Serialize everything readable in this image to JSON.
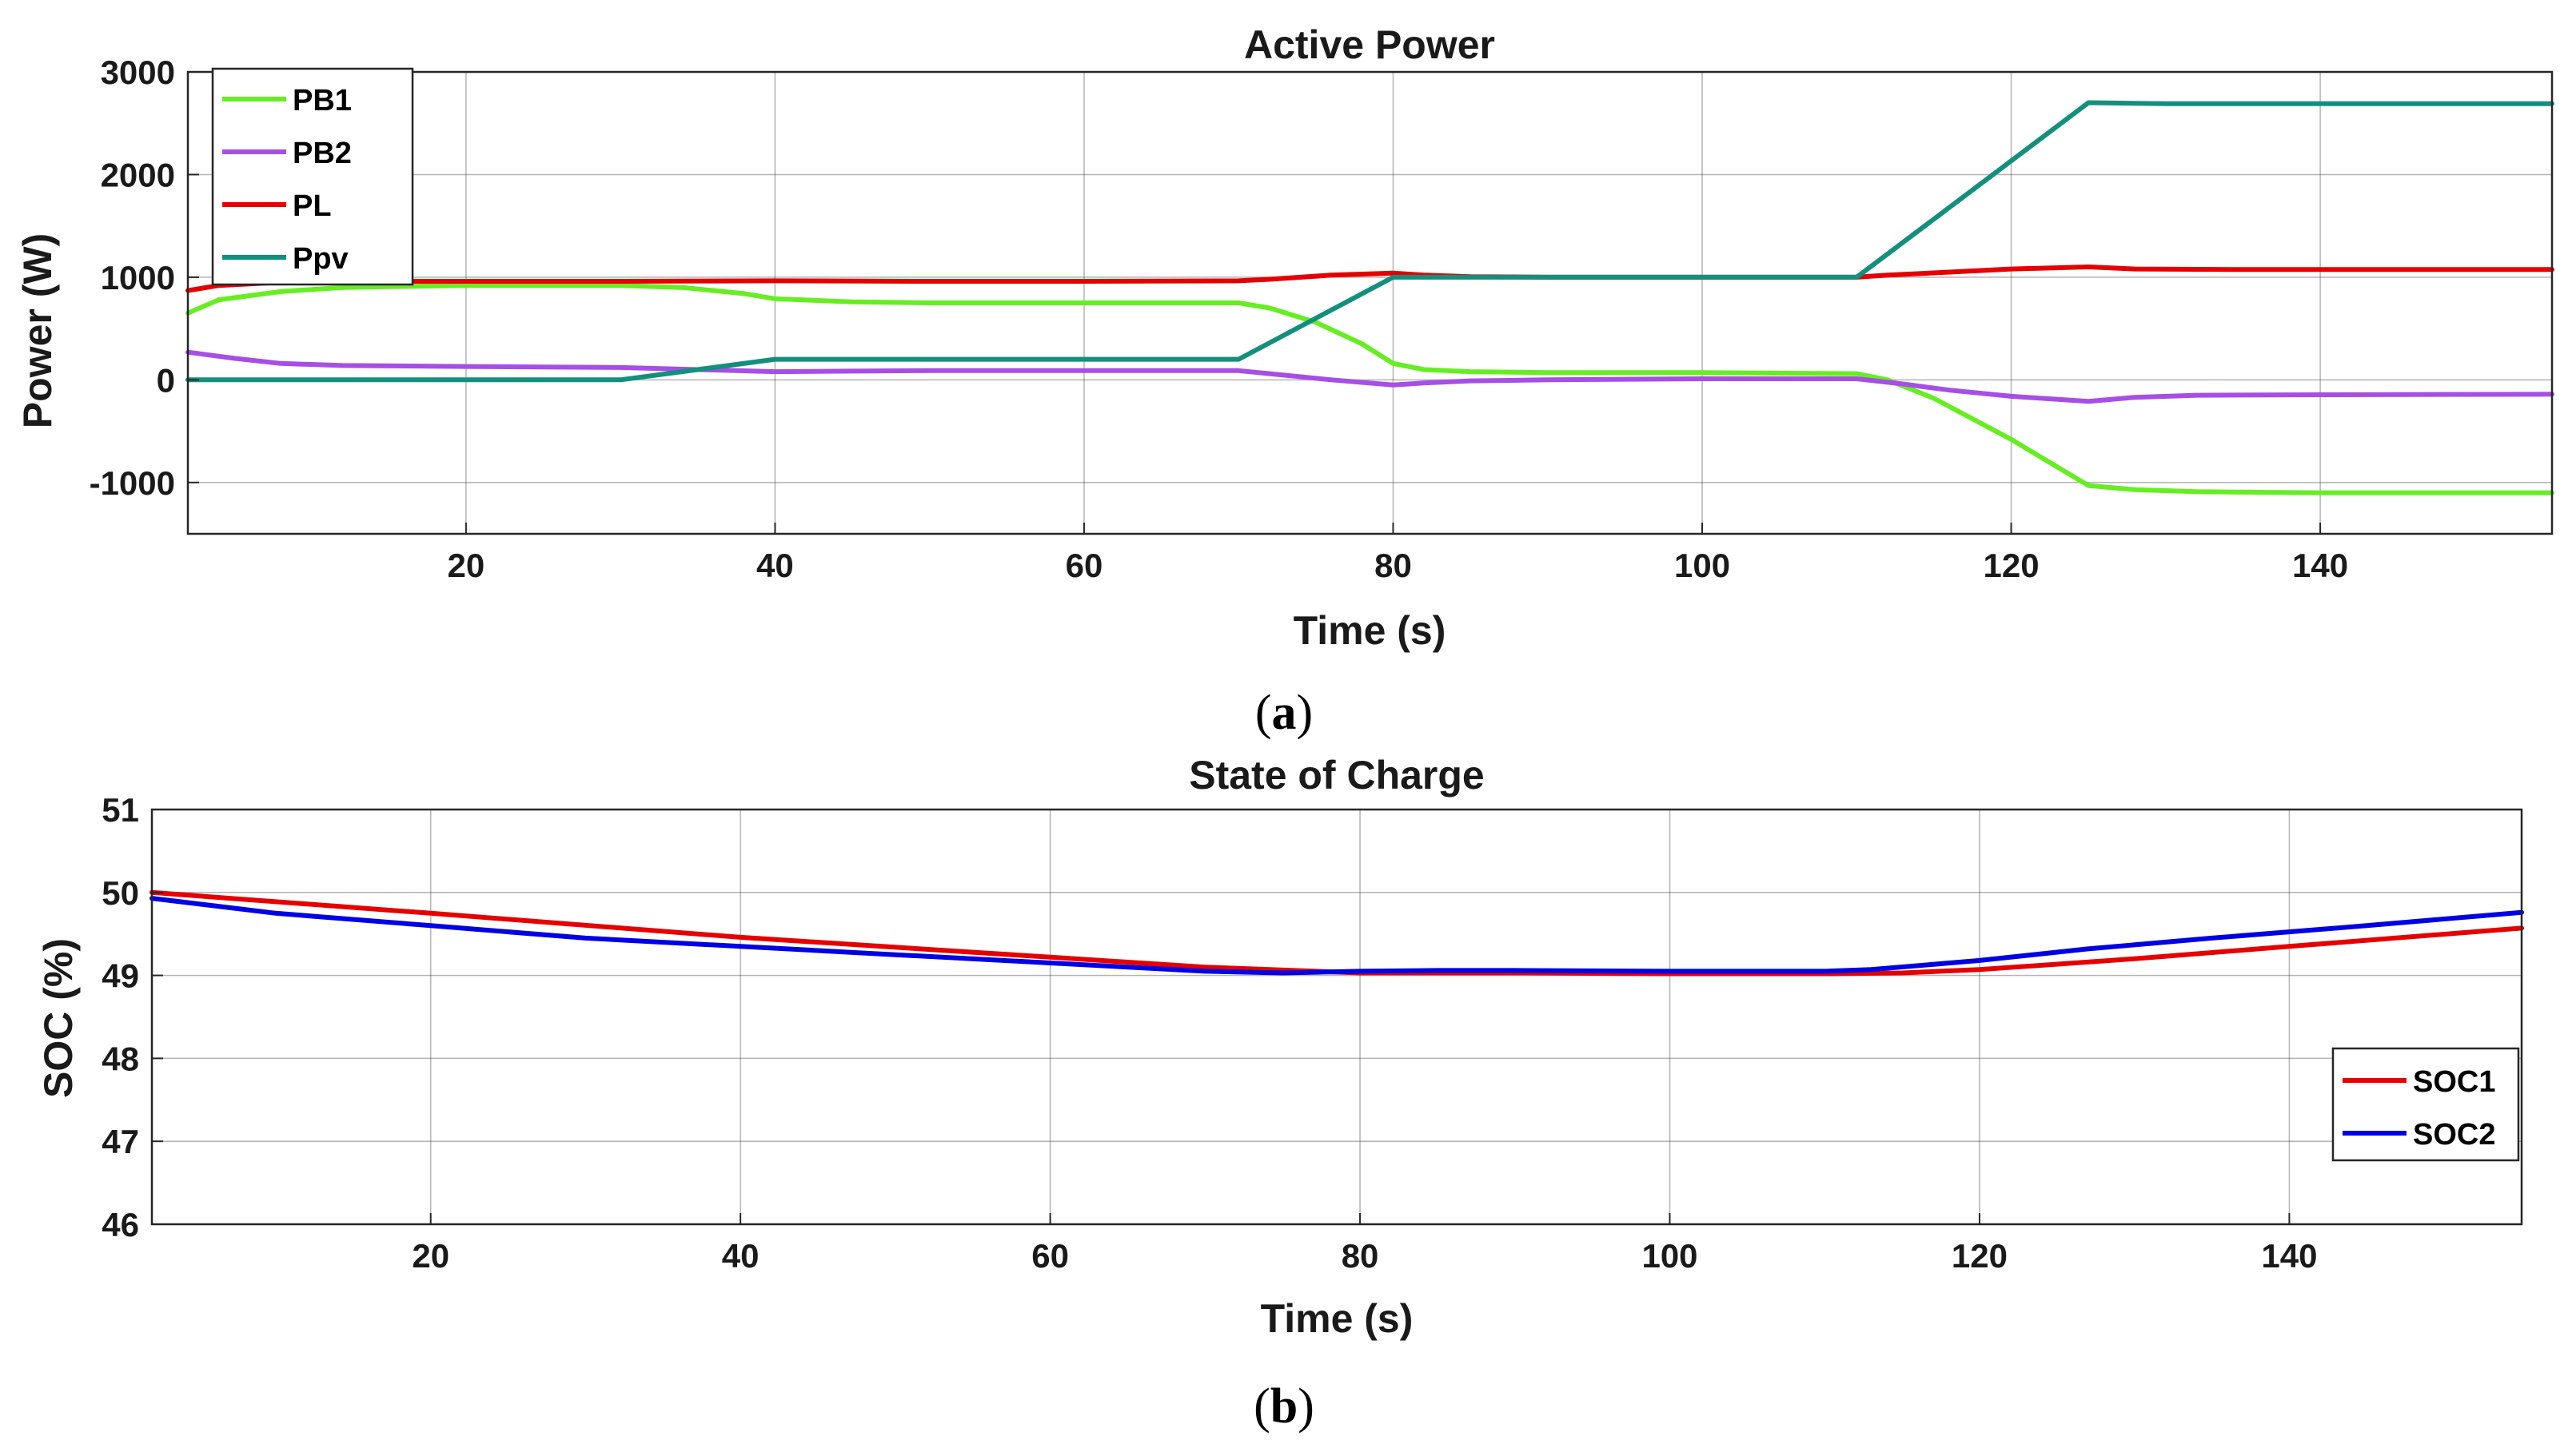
{
  "chart_data": [
    {
      "type": "line",
      "title": "Active Power",
      "xlabel": "Time (s)",
      "ylabel": "Power (W)",
      "xlim": [
        2,
        155
      ],
      "ylim": [
        -1500,
        3000
      ],
      "grid": true,
      "legend_position": "top-left",
      "xticks": [
        20,
        40,
        60,
        80,
        100,
        120,
        140
      ],
      "xtick_labels": [
        "20",
        "40",
        "60",
        "80",
        "100",
        "120",
        "140"
      ],
      "yticks": [
        -1000,
        0,
        1000,
        2000,
        3000
      ],
      "ytick_labels": [
        "-1000",
        "0",
        "1000",
        "2000",
        "3000"
      ],
      "caption": "(a)",
      "series": [
        {
          "name": "PB1",
          "color": "#66ee22",
          "x": [
            2,
            4,
            8,
            12,
            20,
            30,
            34,
            38,
            40,
            45,
            50,
            60,
            70,
            72,
            75,
            78,
            80,
            82,
            85,
            90,
            100,
            110,
            112,
            115,
            118,
            120,
            122,
            125,
            128,
            132,
            140,
            155
          ],
          "y": [
            650,
            780,
            860,
            900,
            920,
            920,
            900,
            840,
            790,
            760,
            750,
            750,
            750,
            700,
            560,
            350,
            160,
            100,
            80,
            70,
            70,
            60,
            0,
            -180,
            -420,
            -580,
            -760,
            -1030,
            -1070,
            -1090,
            -1100,
            -1100
          ]
        },
        {
          "name": "PB2",
          "color": "#a64ee6",
          "x": [
            2,
            5,
            8,
            12,
            20,
            30,
            35,
            40,
            45,
            50,
            60,
            70,
            72,
            76,
            80,
            82,
            85,
            90,
            100,
            110,
            113,
            116,
            120,
            125,
            128,
            132,
            140,
            155
          ],
          "y": [
            270,
            210,
            160,
            140,
            130,
            120,
            100,
            80,
            85,
            90,
            90,
            90,
            60,
            0,
            -50,
            -30,
            -10,
            0,
            10,
            10,
            -40,
            -100,
            -160,
            -210,
            -170,
            -150,
            -145,
            -140
          ]
        },
        {
          "name": "PL",
          "color": "#e60000",
          "x": [
            2,
            4,
            8,
            12,
            20,
            30,
            40,
            50,
            60,
            70,
            72,
            76,
            80,
            82,
            85,
            90,
            100,
            110,
            112,
            116,
            120,
            125,
            128,
            135,
            145,
            155
          ],
          "y": [
            870,
            920,
            950,
            960,
            960,
            960,
            965,
            960,
            960,
            965,
            980,
            1020,
            1040,
            1020,
            1005,
            1000,
            1000,
            1000,
            1020,
            1050,
            1080,
            1100,
            1080,
            1075,
            1075,
            1075
          ]
        },
        {
          "name": "Ppv",
          "color": "#138f7d",
          "x": [
            2,
            30,
            40,
            70,
            80,
            110,
            125,
            130,
            155
          ],
          "y": [
            0,
            0,
            200,
            200,
            1000,
            1000,
            2700,
            2690,
            2690
          ]
        }
      ]
    },
    {
      "type": "line",
      "title": "State of Charge",
      "xlabel": "Time (s)",
      "ylabel": "SOC (%)",
      "xlim": [
        2,
        155
      ],
      "ylim": [
        46,
        51
      ],
      "grid": true,
      "legend_position": "right",
      "xticks": [
        20,
        40,
        60,
        80,
        100,
        120,
        140
      ],
      "xtick_labels": [
        "20",
        "40",
        "60",
        "80",
        "100",
        "120",
        "140"
      ],
      "yticks": [
        46,
        47,
        48,
        49,
        50,
        51
      ],
      "ytick_labels": [
        "46",
        "47",
        "48",
        "49",
        "50",
        "51"
      ],
      "caption": "(b)",
      "series": [
        {
          "name": "SOC1",
          "color": "#e60000",
          "x": [
            2,
            20,
            40,
            60,
            70,
            80,
            90,
            100,
            110,
            115,
            120,
            130,
            140,
            155
          ],
          "y": [
            50.0,
            49.75,
            49.46,
            49.22,
            49.1,
            49.03,
            49.03,
            49.02,
            49.02,
            49.03,
            49.07,
            49.2,
            49.35,
            49.57
          ]
        },
        {
          "name": "SOC2",
          "color": "#0000e6",
          "x": [
            2,
            10,
            20,
            30,
            40,
            50,
            60,
            70,
            75,
            80,
            85,
            90,
            100,
            110,
            113,
            120,
            127,
            135,
            145,
            155
          ],
          "y": [
            49.93,
            49.75,
            49.6,
            49.45,
            49.35,
            49.25,
            49.15,
            49.05,
            49.03,
            49.05,
            49.06,
            49.06,
            49.05,
            49.05,
            49.07,
            49.18,
            49.32,
            49.45,
            49.6,
            49.76
          ]
        }
      ]
    }
  ]
}
